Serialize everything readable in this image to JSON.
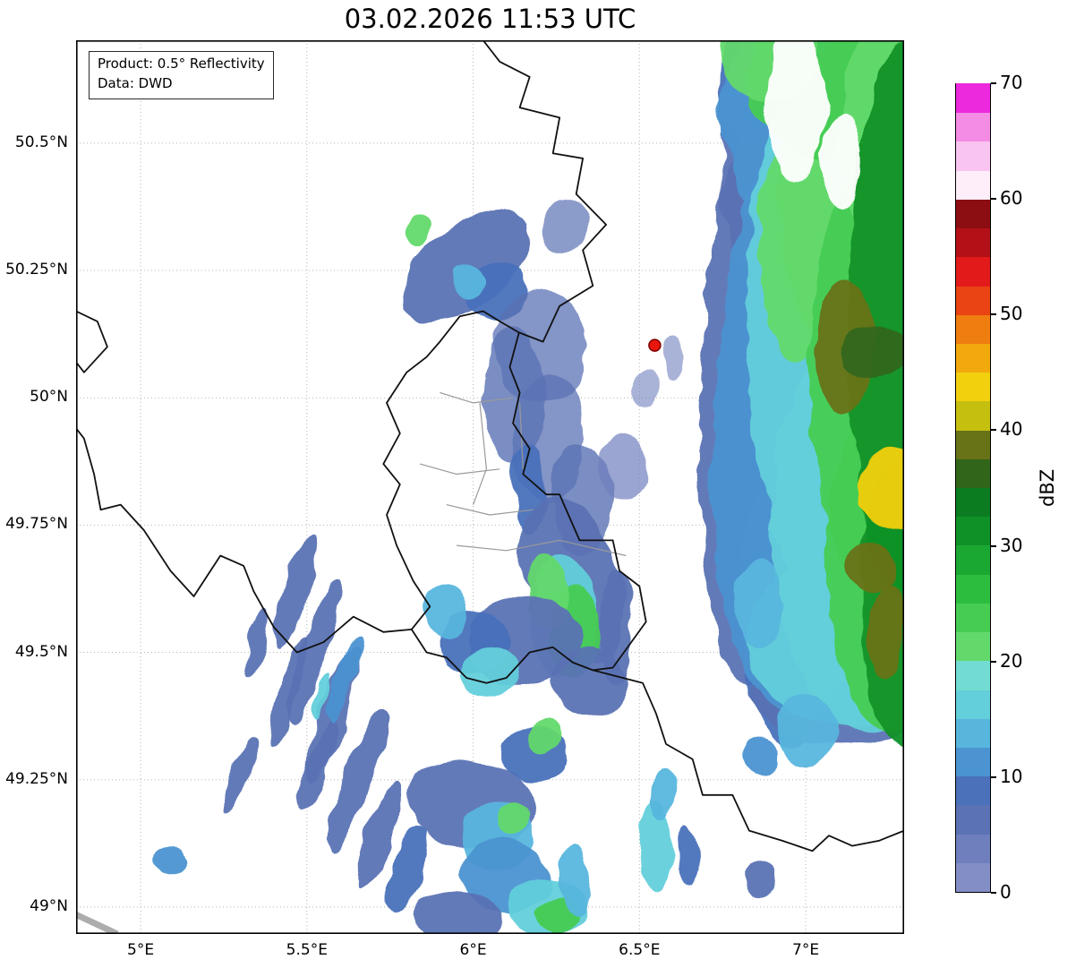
{
  "title": "03.02.2026 11:53 UTC",
  "info_box": {
    "line1": "Product: 0.5° Reflectivity",
    "line2": "Data: DWD"
  },
  "map": {
    "extent": {
      "lon_min": 4.806,
      "lon_max": 7.296,
      "lat_min": 48.947,
      "lat_max": 50.702
    },
    "x_ticks": [
      {
        "lon": 5.0,
        "label": "5°E"
      },
      {
        "lon": 5.5,
        "label": "5.5°E"
      },
      {
        "lon": 6.0,
        "label": "6°E"
      },
      {
        "lon": 6.5,
        "label": "6.5°E"
      },
      {
        "lon": 7.0,
        "label": "7°E"
      }
    ],
    "y_ticks": [
      {
        "lat": 49.0,
        "label": "49°N"
      },
      {
        "lat": 49.25,
        "label": "49.25°N"
      },
      {
        "lat": 49.5,
        "label": "49.5°N"
      },
      {
        "lat": 49.75,
        "label": "49.75°N"
      },
      {
        "lat": 50.0,
        "label": "50°N"
      },
      {
        "lat": 50.25,
        "label": "50.25°N"
      },
      {
        "lat": 50.5,
        "label": "50.5°N"
      }
    ],
    "marker": {
      "lon": 6.546,
      "lat": 50.103,
      "fill": "#e8160c",
      "edge": "#7a0000"
    },
    "borders_country": [
      [
        [
          6.03,
          50.702
        ],
        [
          6.08,
          50.66
        ],
        [
          6.17,
          50.63
        ],
        [
          6.14,
          50.57
        ],
        [
          6.26,
          50.55
        ],
        [
          6.24,
          50.48
        ],
        [
          6.33,
          50.47
        ],
        [
          6.31,
          50.4
        ],
        [
          6.4,
          50.34
        ],
        [
          6.33,
          50.29
        ],
        [
          6.36,
          50.22
        ],
        [
          6.26,
          50.18
        ],
        [
          6.21,
          50.11
        ],
        [
          6.138,
          50.128
        ]
      ],
      [
        [
          6.138,
          50.128
        ],
        [
          6.11,
          50.06
        ],
        [
          6.14,
          50.01
        ],
        [
          6.12,
          49.95
        ],
        [
          6.17,
          49.9
        ],
        [
          6.15,
          49.85
        ],
        [
          6.22,
          49.81
        ],
        [
          6.26,
          49.81
        ],
        [
          6.32,
          49.72
        ],
        [
          6.42,
          49.72
        ],
        [
          6.44,
          49.66
        ],
        [
          6.5,
          49.63
        ],
        [
          6.52,
          49.56
        ],
        [
          6.42,
          49.47
        ],
        [
          6.36,
          49.465
        ],
        [
          6.3,
          49.48
        ],
        [
          6.24,
          49.51
        ],
        [
          6.17,
          49.5
        ],
        [
          6.1,
          49.45
        ],
        [
          6.04,
          49.44
        ],
        [
          5.98,
          49.45
        ],
        [
          5.92,
          49.49
        ],
        [
          5.86,
          49.5
        ],
        [
          5.815,
          49.545
        ],
        [
          5.87,
          49.59
        ],
        [
          5.82,
          49.64
        ],
        [
          5.77,
          49.71
        ],
        [
          5.74,
          49.77
        ],
        [
          5.78,
          49.83
        ],
        [
          5.73,
          49.87
        ],
        [
          5.78,
          49.93
        ],
        [
          5.74,
          49.99
        ],
        [
          5.8,
          50.05
        ],
        [
          5.86,
          50.08
        ],
        [
          5.9,
          50.11
        ],
        [
          5.96,
          50.16
        ],
        [
          6.03,
          50.17
        ],
        [
          6.08,
          50.15
        ],
        [
          6.138,
          50.128
        ]
      ],
      [
        [
          5.815,
          49.545
        ],
        [
          5.73,
          49.54
        ],
        [
          5.64,
          49.57
        ],
        [
          5.55,
          49.52
        ],
        [
          5.47,
          49.5
        ],
        [
          5.4,
          49.55
        ],
        [
          5.34,
          49.62
        ],
        [
          5.31,
          49.67
        ],
        [
          5.24,
          49.69
        ],
        [
          5.16,
          49.61
        ],
        [
          5.09,
          49.66
        ],
        [
          5.01,
          49.74
        ],
        [
          4.94,
          49.79
        ],
        [
          4.88,
          49.78
        ],
        [
          4.86,
          49.85
        ],
        [
          4.83,
          49.92
        ],
        [
          4.806,
          49.94
        ]
      ],
      [
        [
          4.806,
          50.17
        ],
        [
          4.87,
          50.15
        ],
        [
          4.9,
          50.1
        ],
        [
          4.83,
          50.05
        ],
        [
          4.806,
          50.07
        ]
      ],
      [
        [
          6.36,
          49.465
        ],
        [
          6.45,
          49.45
        ],
        [
          6.51,
          49.44
        ],
        [
          6.55,
          49.38
        ],
        [
          6.58,
          49.32
        ],
        [
          6.66,
          49.29
        ],
        [
          6.69,
          49.22
        ],
        [
          6.78,
          49.22
        ],
        [
          6.83,
          49.15
        ],
        [
          6.93,
          49.13
        ],
        [
          7.02,
          49.11
        ],
        [
          7.07,
          49.14
        ],
        [
          7.14,
          49.12
        ],
        [
          7.22,
          49.13
        ],
        [
          7.296,
          49.15
        ]
      ]
    ],
    "borders_admin": [
      [
        [
          5.9,
          50.01
        ],
        [
          6.0,
          49.99
        ],
        [
          6.12,
          50.0
        ]
      ],
      [
        [
          5.84,
          49.87
        ],
        [
          5.95,
          49.85
        ],
        [
          6.08,
          49.86
        ]
      ],
      [
        [
          5.92,
          49.79
        ],
        [
          6.05,
          49.77
        ],
        [
          6.18,
          49.78
        ]
      ],
      [
        [
          5.95,
          49.71
        ],
        [
          6.1,
          49.7
        ],
        [
          6.26,
          49.72
        ],
        [
          6.46,
          49.69
        ]
      ],
      [
        [
          6.02,
          49.99
        ],
        [
          6.04,
          49.86
        ],
        [
          6.0,
          49.79
        ]
      ],
      [
        [
          6.14,
          49.99
        ],
        [
          6.15,
          49.86
        ]
      ]
    ],
    "coverage_edge": [
      [
        4.806,
        48.985
      ],
      [
        4.93,
        48.947
      ]
    ],
    "radar_echoes": [
      {
        "lon": 6.9,
        "lat": 50.05,
        "rx": 0.22,
        "ry": 0.62,
        "rot": 3,
        "dbz": 6
      },
      {
        "lon": 6.9,
        "lat": 50.48,
        "rx": 0.16,
        "ry": 0.28,
        "rot": 0,
        "dbz": 7
      },
      {
        "lon": 6.83,
        "lat": 50.62,
        "rx": 0.09,
        "ry": 0.12,
        "rot": 0,
        "dbz": 8
      },
      {
        "lon": 6.95,
        "lat": 49.6,
        "rx": 0.15,
        "ry": 0.28,
        "rot": 0,
        "dbz": 8
      },
      {
        "lon": 7.1,
        "lat": 49.42,
        "rx": 0.26,
        "ry": 0.1,
        "rot": 0,
        "dbz": 7
      },
      {
        "lon": 7.02,
        "lat": 50.0,
        "rx": 0.3,
        "ry": 0.62,
        "rot": 4,
        "dbz": 11
      },
      {
        "lon": 7.02,
        "lat": 50.55,
        "rx": 0.28,
        "ry": 0.22,
        "rot": 0,
        "dbz": 11
      },
      {
        "lon": 7.1,
        "lat": 49.52,
        "rx": 0.28,
        "ry": 0.16,
        "rot": 0,
        "dbz": 16
      },
      {
        "lon": 7.15,
        "lat": 50.15,
        "rx": 0.33,
        "ry": 0.6,
        "rot": 0,
        "dbz": 16
      },
      {
        "lon": 7.18,
        "lat": 49.75,
        "rx": 0.28,
        "ry": 0.4,
        "rot": 0,
        "dbz": 16
      },
      {
        "lon": 7.0,
        "lat": 49.35,
        "rx": 0.09,
        "ry": 0.07,
        "rot": 0,
        "dbz": 13
      },
      {
        "lon": 6.98,
        "lat": 50.3,
        "rx": 0.12,
        "ry": 0.22,
        "rot": 0,
        "dbz": 21
      },
      {
        "lon": 7.18,
        "lat": 50.38,
        "rx": 0.26,
        "ry": 0.34,
        "rot": 0,
        "dbz": 22
      },
      {
        "lon": 7.25,
        "lat": 50.05,
        "rx": 0.24,
        "ry": 0.45,
        "rot": 0,
        "dbz": 24
      },
      {
        "lon": 7.26,
        "lat": 49.68,
        "rx": 0.2,
        "ry": 0.33,
        "rot": 0,
        "dbz": 24
      },
      {
        "lon": 7.1,
        "lat": 50.63,
        "rx": 0.28,
        "ry": 0.16,
        "rot": 0,
        "dbz": 23
      },
      {
        "lon": 6.89,
        "lat": 50.68,
        "rx": 0.15,
        "ry": 0.1,
        "rot": 0,
        "dbz": 21
      },
      {
        "lon": 7.28,
        "lat": 50.52,
        "rx": 0.18,
        "ry": 0.26,
        "rot": 0,
        "dbz": 22
      },
      {
        "lon": 7.29,
        "lat": 50.15,
        "rx": 0.16,
        "ry": 0.55,
        "rot": 0,
        "dbz": 30
      },
      {
        "lon": 7.29,
        "lat": 49.6,
        "rx": 0.13,
        "ry": 0.28,
        "rot": 0,
        "dbz": 30
      },
      {
        "lon": 7.12,
        "lat": 50.1,
        "rx": 0.09,
        "ry": 0.13,
        "rot": 0,
        "dbz": 38
      },
      {
        "lon": 7.2,
        "lat": 50.09,
        "rx": 0.1,
        "ry": 0.05,
        "rot": 0,
        "dbz": 36
      },
      {
        "lon": 7.27,
        "lat": 49.82,
        "rx": 0.11,
        "ry": 0.08,
        "rot": 0,
        "dbz": 43
      },
      {
        "lon": 7.2,
        "lat": 49.67,
        "rx": 0.08,
        "ry": 0.05,
        "rot": 0,
        "dbz": 39
      },
      {
        "lon": 7.24,
        "lat": 49.54,
        "rx": 0.06,
        "ry": 0.09,
        "rot": 0,
        "dbz": 38
      },
      {
        "lon": 6.97,
        "lat": 50.58,
        "rx": 0.09,
        "ry": 0.15,
        "rot": 0,
        "color": "#ffffff"
      },
      {
        "lon": 7.11,
        "lat": 50.46,
        "rx": 0.06,
        "ry": 0.09,
        "rot": 0,
        "color": "#ffffff"
      },
      {
        "lon": 5.98,
        "lat": 50.26,
        "rx": 0.22,
        "ry": 0.08,
        "rot": -38,
        "dbz": 6
      },
      {
        "lon": 6.07,
        "lat": 50.21,
        "rx": 0.1,
        "ry": 0.06,
        "rot": -35,
        "dbz": 8
      },
      {
        "lon": 5.98,
        "lat": 50.23,
        "rx": 0.05,
        "ry": 0.035,
        "rot": -30,
        "dbz": 13
      },
      {
        "lon": 5.84,
        "lat": 50.33,
        "rx": 0.04,
        "ry": 0.03,
        "rot": 0,
        "dbz": 21
      },
      {
        "lon": 6.28,
        "lat": 50.33,
        "rx": 0.07,
        "ry": 0.05,
        "rot": 0,
        "dbz": 5,
        "op": 0.7
      },
      {
        "lon": 6.2,
        "lat": 50.1,
        "rx": 0.14,
        "ry": 0.11,
        "rot": 0,
        "dbz": 5,
        "op": 0.75
      },
      {
        "lon": 6.12,
        "lat": 50.0,
        "rx": 0.09,
        "ry": 0.14,
        "rot": 0,
        "dbz": 6,
        "op": 0.8
      },
      {
        "lon": 6.23,
        "lat": 49.92,
        "rx": 0.11,
        "ry": 0.13,
        "rot": 0,
        "dbz": 5,
        "op": 0.75
      },
      {
        "lon": 6.33,
        "lat": 49.8,
        "rx": 0.09,
        "ry": 0.11,
        "rot": 0,
        "dbz": 6,
        "op": 0.8
      },
      {
        "lon": 6.45,
        "lat": 49.86,
        "rx": 0.07,
        "ry": 0.07,
        "rot": 0,
        "dbz": 4,
        "op": 0.7
      },
      {
        "lon": 6.17,
        "lat": 49.82,
        "rx": 0.05,
        "ry": 0.09,
        "rot": 0,
        "dbz": 8
      },
      {
        "lon": 6.52,
        "lat": 50.02,
        "rx": 0.04,
        "ry": 0.04,
        "rot": 0,
        "dbz": 4,
        "op": 0.6
      },
      {
        "lon": 6.6,
        "lat": 50.08,
        "rx": 0.03,
        "ry": 0.04,
        "rot": 0,
        "dbz": 4,
        "op": 0.6
      },
      {
        "lon": 6.3,
        "lat": 49.64,
        "rx": 0.14,
        "ry": 0.17,
        "rot": -20,
        "dbz": 7
      },
      {
        "lon": 6.27,
        "lat": 49.57,
        "rx": 0.1,
        "ry": 0.12,
        "rot": 0,
        "dbz": 16
      },
      {
        "lon": 6.3,
        "lat": 49.54,
        "rx": 0.08,
        "ry": 0.09,
        "rot": 0,
        "dbz": 24
      },
      {
        "lon": 6.22,
        "lat": 49.62,
        "rx": 0.06,
        "ry": 0.07,
        "rot": 0,
        "dbz": 21
      },
      {
        "lon": 6.15,
        "lat": 49.52,
        "rx": 0.17,
        "ry": 0.09,
        "rot": -15,
        "dbz": 7
      },
      {
        "lon": 6.0,
        "lat": 49.52,
        "rx": 0.11,
        "ry": 0.06,
        "rot": -15,
        "dbz": 9
      },
      {
        "lon": 5.92,
        "lat": 49.58,
        "rx": 0.07,
        "ry": 0.05,
        "rot": 0,
        "dbz": 13
      },
      {
        "lon": 6.05,
        "lat": 49.46,
        "rx": 0.09,
        "ry": 0.05,
        "rot": 0,
        "dbz": 16
      },
      {
        "lon": 6.35,
        "lat": 49.44,
        "rx": 0.11,
        "ry": 0.07,
        "rot": 0,
        "dbz": 7
      },
      {
        "lon": 6.43,
        "lat": 49.55,
        "rx": 0.05,
        "ry": 0.11,
        "rot": 0,
        "dbz": 6
      },
      {
        "lon": 6.86,
        "lat": 49.6,
        "rx": 0.07,
        "ry": 0.09,
        "rot": 0,
        "dbz": 13
      },
      {
        "lon": 5.47,
        "lat": 49.62,
        "rx": 0.035,
        "ry": 0.12,
        "rot": 18,
        "dbz": 6
      },
      {
        "lon": 5.52,
        "lat": 49.5,
        "rx": 0.04,
        "ry": 0.15,
        "rot": 18,
        "dbz": 7
      },
      {
        "lon": 5.44,
        "lat": 49.42,
        "rx": 0.03,
        "ry": 0.11,
        "rot": 18,
        "dbz": 6
      },
      {
        "lon": 5.58,
        "lat": 49.38,
        "rx": 0.045,
        "ry": 0.14,
        "rot": 20,
        "dbz": 7
      },
      {
        "lon": 5.53,
        "lat": 49.28,
        "rx": 0.03,
        "ry": 0.1,
        "rot": 20,
        "dbz": 6
      },
      {
        "lon": 5.65,
        "lat": 49.25,
        "rx": 0.045,
        "ry": 0.15,
        "rot": 20,
        "dbz": 7
      },
      {
        "lon": 5.72,
        "lat": 49.14,
        "rx": 0.04,
        "ry": 0.11,
        "rot": 22,
        "dbz": 6
      },
      {
        "lon": 5.8,
        "lat": 49.07,
        "rx": 0.05,
        "ry": 0.09,
        "rot": 22,
        "dbz": 8
      },
      {
        "lon": 5.35,
        "lat": 49.52,
        "rx": 0.025,
        "ry": 0.07,
        "rot": 18,
        "dbz": 5
      },
      {
        "lon": 5.3,
        "lat": 49.26,
        "rx": 0.03,
        "ry": 0.08,
        "rot": 18,
        "dbz": 6
      },
      {
        "lon": 5.62,
        "lat": 49.45,
        "rx": 0.03,
        "ry": 0.09,
        "rot": 18,
        "dbz": 11
      },
      {
        "lon": 5.55,
        "lat": 49.42,
        "rx": 0.02,
        "ry": 0.05,
        "rot": 18,
        "dbz": 16
      },
      {
        "lon": 5.09,
        "lat": 49.09,
        "rx": 0.05,
        "ry": 0.03,
        "rot": 30,
        "dbz": 11
      },
      {
        "lon": 6.0,
        "lat": 49.2,
        "rx": 0.19,
        "ry": 0.09,
        "rot": 12,
        "dbz": 7
      },
      {
        "lon": 6.07,
        "lat": 49.14,
        "rx": 0.11,
        "ry": 0.07,
        "rot": 0,
        "dbz": 13
      },
      {
        "lon": 6.12,
        "lat": 49.17,
        "rx": 0.05,
        "ry": 0.035,
        "rot": 0,
        "dbz": 21
      },
      {
        "lon": 6.1,
        "lat": 49.06,
        "rx": 0.13,
        "ry": 0.07,
        "rot": 10,
        "dbz": 11
      },
      {
        "lon": 6.22,
        "lat": 49.0,
        "rx": 0.11,
        "ry": 0.06,
        "rot": 0,
        "dbz": 16
      },
      {
        "lon": 6.25,
        "lat": 48.98,
        "rx": 0.055,
        "ry": 0.035,
        "rot": 0,
        "dbz": 24
      },
      {
        "lon": 6.3,
        "lat": 49.05,
        "rx": 0.05,
        "ry": 0.07,
        "rot": 0,
        "dbz": 13
      },
      {
        "lon": 6.55,
        "lat": 49.12,
        "rx": 0.05,
        "ry": 0.09,
        "rot": 0,
        "dbz": 16
      },
      {
        "lon": 6.57,
        "lat": 49.22,
        "rx": 0.035,
        "ry": 0.05,
        "rot": 0,
        "dbz": 13
      },
      {
        "lon": 6.18,
        "lat": 49.3,
        "rx": 0.11,
        "ry": 0.05,
        "rot": 5,
        "dbz": 8
      },
      {
        "lon": 6.22,
        "lat": 49.33,
        "rx": 0.05,
        "ry": 0.035,
        "rot": 0,
        "dbz": 21
      },
      {
        "lon": 5.95,
        "lat": 48.98,
        "rx": 0.14,
        "ry": 0.05,
        "rot": 0,
        "dbz": 7
      },
      {
        "lon": 6.65,
        "lat": 49.1,
        "rx": 0.035,
        "ry": 0.06,
        "rot": 0,
        "dbz": 8
      },
      {
        "lon": 6.86,
        "lat": 49.3,
        "rx": 0.05,
        "ry": 0.04,
        "rot": 0,
        "dbz": 11
      },
      {
        "lon": 6.87,
        "lat": 49.05,
        "rx": 0.05,
        "ry": 0.035,
        "rot": 0,
        "dbz": 6
      }
    ]
  },
  "colorbar": {
    "label": "dBZ",
    "min": 0,
    "max": 70,
    "ticks": [
      {
        "value": 0,
        "label": "0"
      },
      {
        "value": 10,
        "label": "10"
      },
      {
        "value": 20,
        "label": "20"
      },
      {
        "value": 30,
        "label": "30"
      },
      {
        "value": 40,
        "label": "40"
      },
      {
        "value": 50,
        "label": "50"
      },
      {
        "value": 60,
        "label": "60"
      },
      {
        "value": 70,
        "label": "70"
      }
    ],
    "segments": [
      "#848ec6",
      "#6f7fbd",
      "#5b72b4",
      "#4a71ba",
      "#4b93d1",
      "#58b6dd",
      "#63cfdb",
      "#72dcd2",
      "#63d96c",
      "#46cc53",
      "#2cbd3f",
      "#1ba832",
      "#109128",
      "#0b7d20",
      "#31661a",
      "#687217",
      "#c5bf10",
      "#f2d00e",
      "#f2a90d",
      "#ef7d10",
      "#ea4314",
      "#e31a1a",
      "#b31117",
      "#8c0d12",
      "#fdeefa",
      "#f9c4f0",
      "#f48ce6",
      "#ec29dd"
    ]
  },
  "colors": {
    "border": "#111111",
    "admin_border": "#9a9a9a",
    "grid": "#b5b5b5",
    "frame": "#000000",
    "coverage_edge": "#adadad"
  }
}
